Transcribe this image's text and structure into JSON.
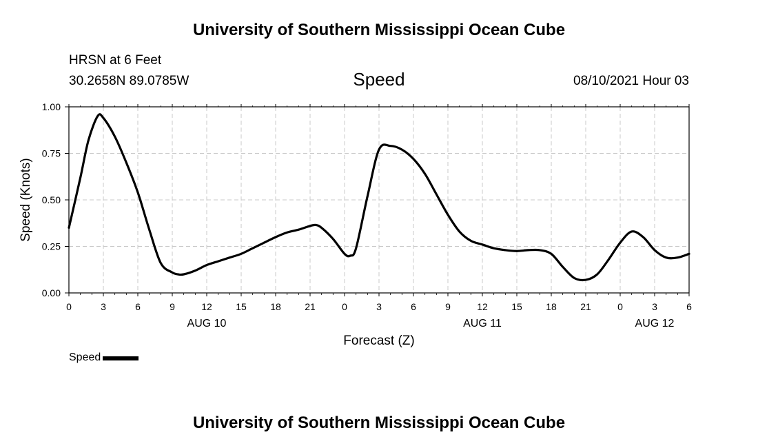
{
  "header": {
    "title": "University of Southern Mississippi Ocean Cube",
    "station": "HRSN at 6 Feet",
    "coords": "30.2658N  89.0785W",
    "variable": "Speed",
    "timestamp": "08/10/2021 Hour 03"
  },
  "footer": {
    "title": "University of Southern Mississippi Ocean Cube"
  },
  "legend": {
    "label": "Speed"
  },
  "colors": {
    "line": "#000000",
    "grid": "#c8c8c8"
  },
  "chart_data": {
    "type": "line",
    "title": "Speed",
    "xlabel": "Forecast (Z)",
    "ylabel": "Speed (Knots)",
    "xlim": [
      0,
      54
    ],
    "ylim": [
      0,
      1.0
    ],
    "grid": true,
    "legend_position": "bottom-left",
    "x_ticks": [
      0,
      3,
      6,
      9,
      12,
      15,
      18,
      21,
      24,
      27,
      30,
      33,
      36,
      39,
      42,
      45,
      48,
      51,
      54
    ],
    "x_tick_labels": [
      "0",
      "3",
      "6",
      "9",
      "12",
      "15",
      "18",
      "21",
      "0",
      "3",
      "6",
      "9",
      "12",
      "15",
      "18",
      "21",
      "0",
      "3",
      "6"
    ],
    "y_ticks": [
      0,
      0.25,
      0.5,
      0.75,
      1.0
    ],
    "y_tick_labels": [
      "0.00",
      "0.25",
      "0.50",
      "0.75",
      "1.00"
    ],
    "day_labels": [
      {
        "x": 12,
        "label": "AUG 10"
      },
      {
        "x": 36,
        "label": "AUG 11"
      },
      {
        "x": 51,
        "label": "AUG 12"
      }
    ],
    "series": [
      {
        "name": "Speed",
        "x": [
          0,
          1,
          1.7,
          2.5,
          3,
          4,
          5,
          6,
          7,
          8,
          9,
          9.5,
          10,
          11,
          12,
          13,
          14,
          15,
          16,
          17,
          18,
          19,
          20,
          21,
          21.5,
          22,
          23,
          24,
          24.5,
          25,
          26,
          27,
          28,
          29,
          30,
          31,
          32,
          33,
          34,
          35,
          36,
          37,
          38,
          39,
          40,
          41,
          42,
          43,
          44,
          45,
          46,
          47,
          48,
          49,
          50,
          51,
          52,
          53,
          54
        ],
        "y": [
          0.35,
          0.62,
          0.82,
          0.95,
          0.94,
          0.84,
          0.7,
          0.54,
          0.34,
          0.16,
          0.11,
          0.1,
          0.1,
          0.12,
          0.15,
          0.17,
          0.19,
          0.21,
          0.24,
          0.27,
          0.3,
          0.325,
          0.34,
          0.36,
          0.365,
          0.35,
          0.29,
          0.21,
          0.2,
          0.24,
          0.52,
          0.77,
          0.79,
          0.77,
          0.72,
          0.64,
          0.53,
          0.42,
          0.33,
          0.28,
          0.26,
          0.24,
          0.23,
          0.225,
          0.23,
          0.23,
          0.21,
          0.14,
          0.08,
          0.07,
          0.1,
          0.18,
          0.27,
          0.33,
          0.3,
          0.23,
          0.19,
          0.19,
          0.21
        ]
      }
    ]
  }
}
